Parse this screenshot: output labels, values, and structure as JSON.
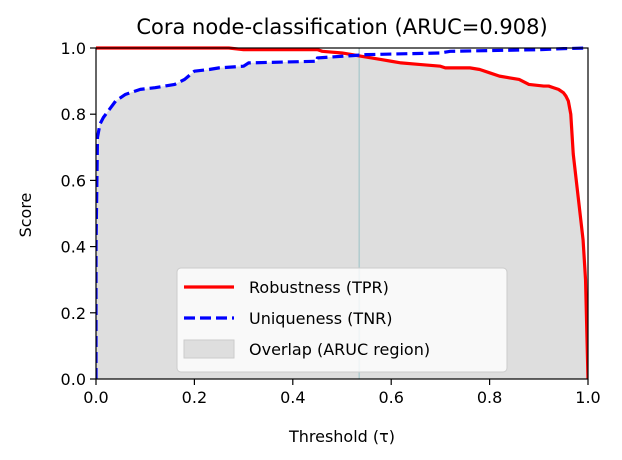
{
  "chart_data": {
    "type": "line",
    "title": "Cora node-classification (ARUC=0.908)",
    "xlabel": "Threshold (τ)",
    "ylabel": "Score",
    "xlim": [
      0,
      1
    ],
    "ylim": [
      0,
      1
    ],
    "xticks": [
      "0.0",
      "0.2",
      "0.4",
      "0.6",
      "0.8",
      "1.0"
    ],
    "yticks": [
      "0.0",
      "0.2",
      "0.4",
      "0.6",
      "0.8",
      "1.0"
    ],
    "grid": false,
    "legend_position": "lower-center",
    "vertical_line": {
      "x": 0.535
    },
    "series": [
      {
        "name": "Robustness (TPR)",
        "color": "#ff0000",
        "style": "solid",
        "x": [
          0,
          0.27,
          0.3,
          0.45,
          0.46,
          0.5,
          0.52,
          0.54,
          0.56,
          0.58,
          0.6,
          0.62,
          0.66,
          0.7,
          0.71,
          0.76,
          0.78,
          0.8,
          0.82,
          0.86,
          0.88,
          0.91,
          0.92,
          0.93,
          0.94,
          0.95,
          0.955,
          0.96,
          0.965,
          0.97,
          0.98,
          0.99,
          0.995,
          1.0
        ],
        "y": [
          1.0,
          1.0,
          0.995,
          0.995,
          0.99,
          0.985,
          0.98,
          0.975,
          0.97,
          0.965,
          0.96,
          0.955,
          0.95,
          0.945,
          0.94,
          0.94,
          0.935,
          0.925,
          0.915,
          0.905,
          0.89,
          0.885,
          0.885,
          0.88,
          0.875,
          0.865,
          0.855,
          0.84,
          0.8,
          0.68,
          0.55,
          0.42,
          0.3,
          0.0
        ]
      },
      {
        "name": "Uniqueness (TNR)",
        "color": "#0000ff",
        "style": "dashed",
        "x": [
          0.0,
          0.0,
          0.003,
          0.008,
          0.015,
          0.025,
          0.04,
          0.06,
          0.09,
          0.12,
          0.16,
          0.18,
          0.2,
          0.23,
          0.25,
          0.3,
          0.31,
          0.45,
          0.45,
          0.5,
          0.55,
          0.7,
          0.72,
          0.9,
          0.95,
          1.0
        ],
        "y": [
          0.0,
          0.4,
          0.73,
          0.77,
          0.79,
          0.81,
          0.84,
          0.86,
          0.875,
          0.88,
          0.89,
          0.905,
          0.93,
          0.935,
          0.94,
          0.945,
          0.955,
          0.96,
          0.97,
          0.975,
          0.98,
          0.985,
          0.99,
          0.995,
          0.998,
          1.0
        ]
      }
    ],
    "fill": {
      "name": "Overlap (ARUC region)",
      "color": "#dedede",
      "description_of_bounds": "min(TPR, TNR)"
    }
  }
}
